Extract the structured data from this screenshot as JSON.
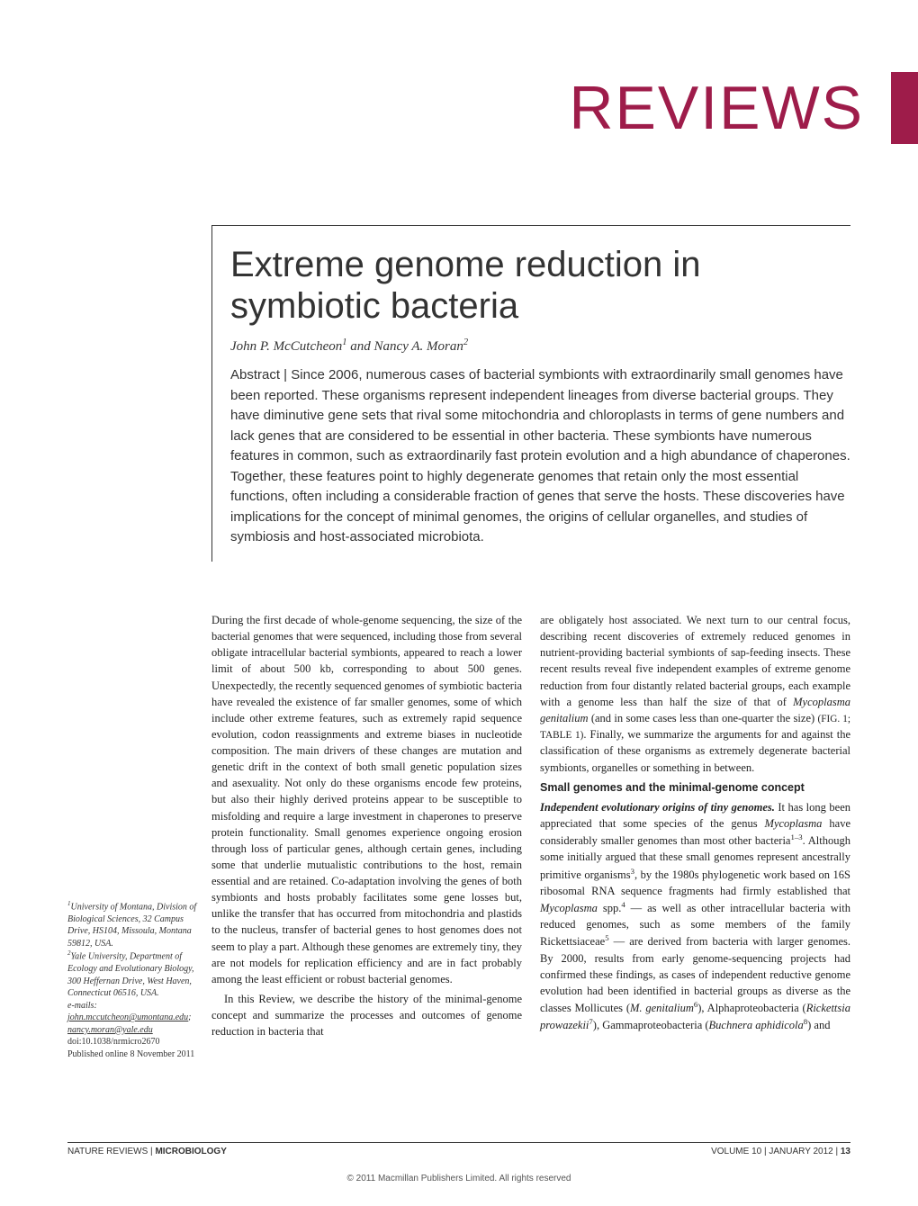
{
  "journal": {
    "section_label": "REVIEWS",
    "accent_color": "#9e1c4a",
    "name": "NATURE REVIEWS",
    "subject": "MICROBIOLOGY",
    "volume": "VOLUME 10",
    "issue_date": "JANUARY 2012",
    "page": "13",
    "copyright": "© 2011 Macmillan Publishers Limited. All rights reserved"
  },
  "article": {
    "title": "Extreme genome reduction in symbiotic bacteria",
    "authors_html": "John P. McCutcheon<sup>1</sup> and Nancy A. Moran<sup>2</sup>",
    "abstract_label": "Abstract | ",
    "abstract": "Since 2006, numerous cases of bacterial symbionts with extraordinarily small genomes have been reported. These organisms represent independent lineages from diverse bacterial groups. They have diminutive gene sets that rival some mitochondria and chloroplasts in terms of gene numbers and lack genes that are considered to be essential in other bacteria. These symbionts have numerous features in common, such as extraordinarily fast protein evolution and a high abundance of chaperones. Together, these features point to highly degenerate genomes that retain only the most essential functions, often including a considerable fraction of genes that serve the hosts. These discoveries have implications for the concept of minimal genomes, the origins of cellular organelles, and studies of symbiosis and host-associated microbiota."
  },
  "body": {
    "col1_p1": "During the first decade of whole-genome sequencing, the size of the bacterial genomes that were sequenced, including those from several obligate intracellular bacterial symbionts, appeared to reach a lower limit of about 500 kb, corresponding to about 500 genes. Unexpectedly, the recently sequenced genomes of symbiotic bacteria have revealed the existence of far smaller genomes, some of which include other extreme features, such as extremely rapid sequence evolution, codon reassignments and extreme biases in nucleotide composition. The main drivers of these changes are mutation and genetic drift in the context of both small genetic population sizes and asexuality. Not only do these organisms encode few proteins, but also their highly derived proteins appear to be susceptible to misfolding and require a large investment in chaperones to preserve protein functionality. Small genomes experience ongoing erosion through loss of particular genes, although certain genes, including some that underlie mutualistic contributions to the host, remain essential and are retained. Co-adaptation involving the genes of both symbionts and hosts probably facilitates some gene losses but, unlike the transfer that has occurred from mitochondria and plastids to the nucleus, transfer of bacterial genes to host genomes does not seem to play a part. Although these genomes are extremely tiny, they are not models for replication efficiency and are in fact probably among the least efficient or robust bacterial genomes.",
    "col1_p2": "In this Review, we describe the history of the minimal-genome concept and summarize the processes and outcomes of genome reduction in bacteria that",
    "col2_p1": "are obligately host associated. We next turn to our central focus, describing recent discoveries of extremely reduced genomes in nutrient-providing bacterial symbionts of sap-feeding insects. These recent results reveal five independent examples of extreme genome reduction from four distantly related bacterial groups, each example with a genome less than half the size of that of <span class=\"italic\">Mycoplasma genitalium</span> (and in some cases less than one-quarter the size) <span class=\"small-caps\">(FIG. 1; TABLE 1)</span>. Finally, we summarize the arguments for and against the classification of these organisms as extremely degenerate bacterial symbionts, organelles or something in between.",
    "col2_h1": "Small genomes and the minimal-genome concept",
    "col2_sub1": "Independent evolutionary origins of tiny genomes.",
    "col2_p2": "It has long been appreciated that some species of the genus <span class=\"italic\">Mycoplasma</span> have considerably smaller genomes than most other bacteria<sup>1–3</sup>. Although some initially argued that these small genomes represent ancestrally primitive organisms<sup>3</sup>, by the 1980s phylogenetic work based on 16S ribosomal RNA sequence fragments had firmly established that <span class=\"italic\">Mycoplasma</span> spp.<sup>4</sup> — as well as other intracellular bacteria with reduced genomes, such as some members of the family Rickettsiaceae<sup>5</sup> — are derived from bacteria with larger genomes. By 2000, results from early genome-sequencing projects had confirmed these findings, as cases of independent reductive genome evolution had been identified in bacterial groups as diverse as the classes Mollicutes (<span class=\"italic\">M. genitalium</span><sup>6</sup>), Alphaproteobacteria (<span class=\"italic\">Rickettsia prowazekii</span><sup>7</sup>), Gammaproteobacteria (<span class=\"italic\">Buchnera aphidicola</span><sup>8</sup>) and"
  },
  "affiliations": {
    "aff1": "<sup>1</sup>University of Montana, Division of Biological Sciences, 32 Campus Drive, HS104, Missoula, Montana 59812, USA.",
    "aff2": "<sup>2</sup>Yale University, Department of Ecology and Evolutionary Biology, 300 Heffernan Drive, West Haven, Connecticut 06516, USA.",
    "emails_label": "e-mails:",
    "email1": "john.mccutcheon@umontana.edu",
    "email2": "nancy.moran@yale.edu",
    "doi": "doi:10.1038/nrmicro2670",
    "pub_online": "Published online 8 November 2011"
  }
}
